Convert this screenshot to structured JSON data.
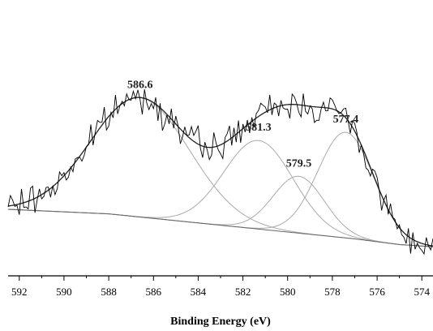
{
  "chart_data": {
    "type": "line",
    "title": "",
    "xlabel": "Binding Energy (eV)",
    "ylabel": "",
    "x_reversed": true,
    "xlim": [
      592.5,
      573.5
    ],
    "x_ticks": [
      "592",
      "590",
      "588",
      "586",
      "584",
      "582",
      "580",
      "578",
      "576",
      "574"
    ],
    "grid": false,
    "legend": "none",
    "peaks": [
      {
        "center": 586.6,
        "label": "586.6",
        "height": 1.05,
        "sigma": 2.2
      },
      {
        "center": 581.3,
        "label": "581.3",
        "height": 0.78,
        "sigma": 1.55
      },
      {
        "center": 579.5,
        "label": "579.5",
        "height": 0.5,
        "sigma": 1.15
      },
      {
        "center": 577.4,
        "label": "577.4",
        "height": 0.93,
        "sigma": 1.25
      }
    ],
    "background_points": [
      [
        592.5,
        0.0
      ],
      [
        588.0,
        -0.04
      ],
      [
        584.0,
        -0.12
      ],
      [
        580.0,
        -0.2
      ],
      [
        577.0,
        -0.26
      ],
      [
        575.0,
        -0.31
      ],
      [
        573.5,
        -0.33
      ]
    ],
    "raw_data_noise": 0.13,
    "colors": {
      "raw": "#000000",
      "envelope": "#222222",
      "components": "#aaaaaa",
      "background": "#666666"
    }
  }
}
